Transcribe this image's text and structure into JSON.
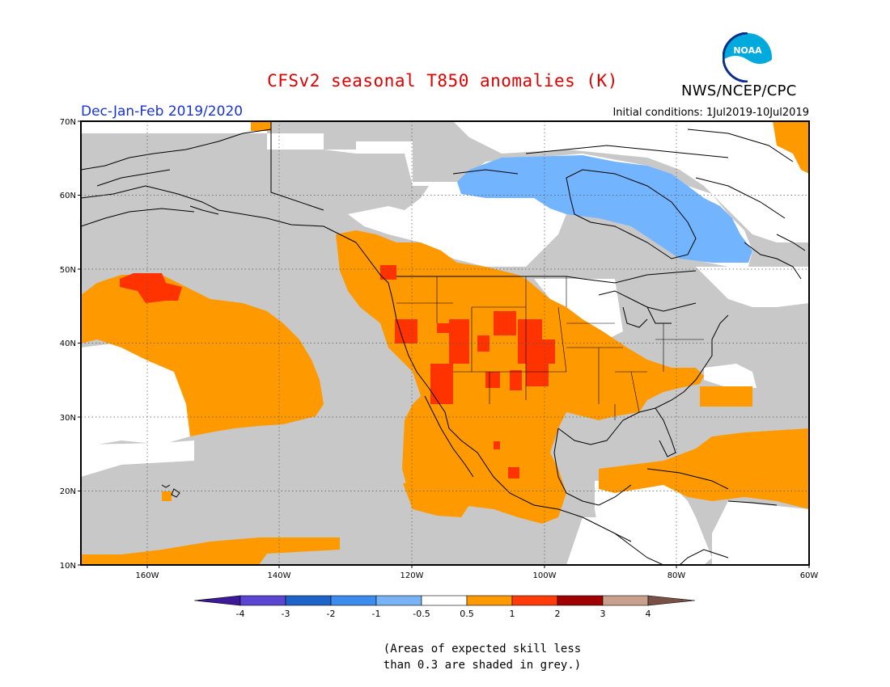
{
  "header": {
    "title": "CFSv2 seasonal T850 anomalies (K)",
    "organization": "NWS/NCEP/CPC",
    "logo_text": "NOAA",
    "period": "Dec-Jan-Feb 2019/2020",
    "initial_conditions": "Initial conditions: 1Jul2019-10Jul2019"
  },
  "map": {
    "projection": "cylindrical equidistant",
    "lon_range": [
      "170W",
      "60W"
    ],
    "lat_range": [
      "10N",
      "70N"
    ],
    "lat_ticks": [
      "70N",
      "60N",
      "50N",
      "40N",
      "30N",
      "20N",
      "10N"
    ],
    "lon_ticks": [
      "160W",
      "140W",
      "120W",
      "100W",
      "80W",
      "60W"
    ],
    "gridlines": "dotted",
    "colors": {
      "skill_grey": "#c8c8c8",
      "neutral": "#ffffff",
      "warm_0_5_1": "#ff9900",
      "warm_1_2": "#ff3300",
      "cool_neg1_neg0_5": "#73b4ff",
      "land_outline": "#000000"
    }
  },
  "colorbar": {
    "labels": [
      "-4",
      "-3",
      "-2",
      "-1",
      "-0.5",
      "0.5",
      "1",
      "2",
      "3",
      "4"
    ],
    "colors": [
      "#3c1996",
      "#5a46d2",
      "#1e64c8",
      "#3c8cf0",
      "#78b4f5",
      "#ffffff",
      "#ff9900",
      "#ff3c0a",
      "#a00000",
      "#c8a08c",
      "#785046"
    ]
  },
  "footnote": {
    "line1": "(Areas of expected skill less",
    "line2": "than 0.3 are shaded in grey.)"
  }
}
